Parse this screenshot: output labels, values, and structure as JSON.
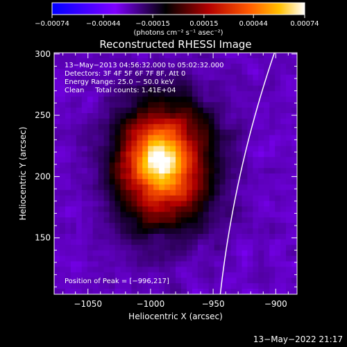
{
  "chart_data": {
    "type": "heatmap",
    "title": "Reconstructed RHESSI Image",
    "xlabel": "Heliocentric X (arcsec)",
    "ylabel": "Heliocentric Y (arcsec)",
    "xlim": [
      -1077,
      -883
    ],
    "ylim": [
      104,
      301
    ],
    "xticks": [
      -1050,
      -1000,
      -950,
      -900
    ],
    "yticks": [
      150,
      200,
      250,
      300
    ],
    "colorbar": {
      "range": [
        -0.00074,
        0.00074
      ],
      "ticks": [
        -0.00074,
        -0.00044,
        -0.00015,
        0.00015,
        0.00044,
        0.00074
      ],
      "tick_labels": [
        "−0.00074",
        "−0.00044",
        "−0.00015",
        "0.00015",
        "0.00044",
        "0.00074"
      ],
      "unit_label": "(photons cm⁻² s⁻¹ asec⁻²)"
    },
    "info_lines": [
      "13−May−2013 04:56:32.000 to 05:02:32.000",
      "Detectors: 3F 4F 5F 6F 7F 8F, Att 0",
      "Energy Range: 25.0 − 50.0 keV",
      "Clean     Total counts: 1.41E+04"
    ],
    "peak_text": "Position of Peak = [−996,217]",
    "peak": {
      "x": -996,
      "y": 217
    },
    "x_tick_labels": [
      "−1050",
      "−1000",
      "−950",
      "−900"
    ],
    "y_tick_labels": [
      "150",
      "200",
      "250",
      "300"
    ],
    "source": {
      "center": {
        "x": -990,
        "y": 210
      },
      "sigma_x": 26,
      "sigma_y": 34,
      "peak_value": 0.00074,
      "background_value": -0.0003
    },
    "limb_radius_arcsec": 950
  },
  "footer": {
    "timestamp": "13−May−2022 21:17"
  }
}
